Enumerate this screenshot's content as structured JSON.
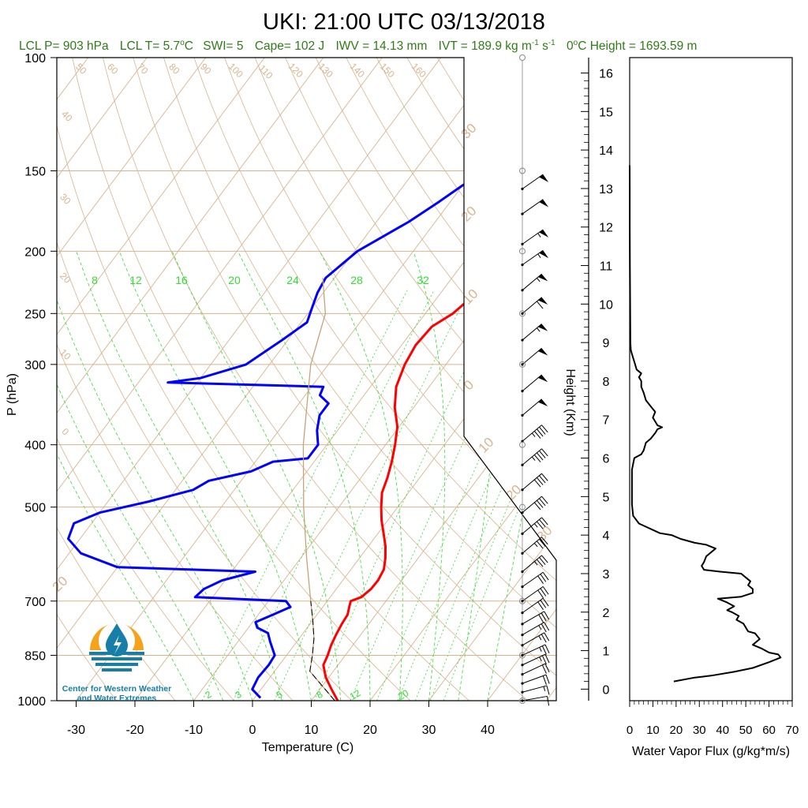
{
  "title": "UKI: 21:00 UTC 03/13/2018",
  "stats": {
    "lcl_p": "LCL P= 903 hPa",
    "lcl_t_pre": "LCL T= 5.7",
    "lcl_t_unit": "C",
    "swi": "SWI= 5",
    "cape": "Cape= 102 J",
    "iwv": "IWV = 14.13 mm",
    "ivt_pre": "IVT = 189.9 kg m",
    "ivt_e1": "-1",
    "ivt_mid": " s",
    "ivt_e2": "-1",
    "zero_pre": "0",
    "zero_post": "C Height = 1693.59 m",
    "degree": "o"
  },
  "colors": {
    "temperature": "#ff0000",
    "dewpoint": "#0000ff",
    "mixing_ratio": "#33dd33",
    "isotherm": "#d9b38c",
    "dry_adiabat": "#d9b38c",
    "title_green": "#2e7d16",
    "flux": "#000000"
  },
  "logo": {
    "line1": "Center for Western Weather",
    "line2": "and Water Extremes"
  },
  "chart_data": [
    {
      "type": "line",
      "name": "skew-t",
      "xlabel": "Temperature (C)",
      "ylabel": "P (hPa)",
      "xlim": [
        -34,
        52
      ],
      "ylim": [
        1000,
        100
      ],
      "x_ticks": [
        "-30",
        "-20",
        "-10",
        "0",
        "10",
        "20",
        "30",
        "40"
      ],
      "y_ticks": [
        100,
        150,
        200,
        250,
        300,
        400,
        500,
        700,
        850,
        1000
      ],
      "isotherm_labels": [
        "50",
        "60",
        "70",
        "80",
        "90",
        "100",
        "110",
        "120",
        "130",
        "140",
        "150",
        "160",
        "40",
        "30",
        "20",
        "10",
        "0",
        "10",
        "20",
        "30",
        "-20",
        "-10",
        "0",
        "10",
        "20",
        "30",
        "40",
        "50",
        "60"
      ],
      "mixing_ratio_labels_top": [
        "8",
        "12",
        "16",
        "20",
        "24",
        "28",
        "32"
      ],
      "mixing_ratio_labels_bottom": [
        "2",
        "3",
        "5",
        "8",
        "12",
        "20"
      ],
      "series": [
        {
          "name": "temperature",
          "points": [
            [
              14.5,
              1000
            ],
            [
              12.0,
              960
            ],
            [
              9.5,
              920
            ],
            [
              7.5,
              880
            ],
            [
              7.0,
              850
            ],
            [
              6.3,
              820
            ],
            [
              5.8,
              790
            ],
            [
              5.4,
              760
            ],
            [
              5.2,
              735
            ],
            [
              4.5,
              715
            ],
            [
              4.0,
              700
            ],
            [
              5.3,
              690
            ],
            [
              5.9,
              670
            ],
            [
              6.0,
              650
            ],
            [
              5.6,
              625
            ],
            [
              4.4,
              600
            ],
            [
              2.9,
              575
            ],
            [
              1.0,
              550
            ],
            [
              -1.0,
              525
            ],
            [
              -2.8,
              500
            ],
            [
              -4.5,
              475
            ],
            [
              -5.5,
              450
            ],
            [
              -6.8,
              425
            ],
            [
              -8.4,
              400
            ],
            [
              -10.3,
              375
            ],
            [
              -13.2,
              350
            ],
            [
              -15.6,
              325
            ],
            [
              -17.0,
              300
            ],
            [
              -17.6,
              280
            ],
            [
              -17.2,
              262
            ],
            [
              -15.3,
              250
            ],
            [
              -14.2,
              236
            ],
            [
              -14.8,
              222
            ],
            [
              -14.3,
              208
            ],
            [
              -11.5,
              197
            ],
            [
              -8.5,
              185
            ],
            [
              -6.0,
              175
            ],
            [
              -4.8,
              168
            ],
            [
              -4.0,
              160
            ],
            [
              -1.5,
              154
            ],
            [
              1.5,
              150
            ]
          ]
        },
        {
          "name": "dewpoint",
          "points": [
            [
              1.0,
              990
            ],
            [
              -1.5,
              960
            ],
            [
              -2.0,
              920
            ],
            [
              -1.8,
              880
            ],
            [
              -2.0,
              850
            ],
            [
              -4.5,
              810
            ],
            [
              -6.0,
              785
            ],
            [
              -8.5,
              770
            ],
            [
              -9.5,
              755
            ],
            [
              -7.5,
              735
            ],
            [
              -5.5,
              715
            ],
            [
              -7.0,
              700
            ],
            [
              -23.0,
              690
            ],
            [
              -22.5,
              670
            ],
            [
              -20.5,
              650
            ],
            [
              -16.0,
              630
            ],
            [
              -40.0,
              620
            ],
            [
              -48.0,
              590
            ],
            [
              -52.0,
              560
            ],
            [
              -53.0,
              530
            ],
            [
              -50.0,
              510
            ],
            [
              -43.0,
              490
            ],
            [
              -37.0,
              470
            ],
            [
              -35.5,
              455
            ],
            [
              -29.5,
              440
            ],
            [
              -27.0,
              425
            ],
            [
              -21.5,
              420
            ],
            [
              -21.5,
              400
            ],
            [
              -23.5,
              380
            ],
            [
              -25.0,
              360
            ],
            [
              -25.0,
              345
            ],
            [
              -27.5,
              335
            ],
            [
              -28.0,
              325
            ],
            [
              -55.0,
              320
            ],
            [
              -50.0,
              315
            ],
            [
              -44.0,
              300
            ],
            [
              -41.0,
              275
            ],
            [
              -39.0,
              258
            ],
            [
              -40.0,
              245
            ],
            [
              -41.0,
              232
            ],
            [
              -41.5,
              220
            ],
            [
              -39.5,
              200
            ],
            [
              -34.5,
              180
            ],
            [
              -32.0,
              168
            ],
            [
              -30.0,
              158
            ],
            [
              -27.5,
              150
            ]
          ]
        },
        {
          "name": "parcel",
          "points": [
            [
              14.0,
              1000
            ],
            [
              6.0,
              900
            ],
            [
              4.4,
              850
            ],
            [
              2.5,
              800
            ],
            [
              0.0,
              750
            ],
            [
              -2.8,
              700
            ],
            [
              -9.0,
              600
            ],
            [
              -16.0,
              500
            ],
            [
              -24.0,
              400
            ],
            [
              -33.0,
              300
            ],
            [
              -37.0,
              250
            ],
            [
              -42.0,
              220
            ]
          ]
        }
      ],
      "barbs": [
        {
          "p": 1000,
          "speed": 10,
          "dir": 260
        },
        {
          "p": 970,
          "speed": 15,
          "dir": 255
        },
        {
          "p": 940,
          "speed": 20,
          "dir": 250
        },
        {
          "p": 910,
          "speed": 20,
          "dir": 245
        },
        {
          "p": 880,
          "speed": 25,
          "dir": 245
        },
        {
          "p": 850,
          "speed": 25,
          "dir": 245
        },
        {
          "p": 820,
          "speed": 25,
          "dir": 240
        },
        {
          "p": 790,
          "speed": 25,
          "dir": 240
        },
        {
          "p": 760,
          "speed": 30,
          "dir": 240
        },
        {
          "p": 730,
          "speed": 30,
          "dir": 235
        },
        {
          "p": 700,
          "speed": 30,
          "dir": 235
        },
        {
          "p": 665,
          "speed": 30,
          "dir": 235
        },
        {
          "p": 630,
          "speed": 35,
          "dir": 230
        },
        {
          "p": 590,
          "speed": 35,
          "dir": 230
        },
        {
          "p": 550,
          "speed": 35,
          "dir": 230
        },
        {
          "p": 510,
          "speed": 40,
          "dir": 230
        },
        {
          "p": 470,
          "speed": 40,
          "dir": 230
        },
        {
          "p": 430,
          "speed": 45,
          "dir": 230
        },
        {
          "p": 395,
          "speed": 45,
          "dir": 230
        },
        {
          "p": 360,
          "speed": 50,
          "dir": 230
        },
        {
          "p": 330,
          "speed": 50,
          "dir": 230
        },
        {
          "p": 300,
          "speed": 50,
          "dir": 230
        },
        {
          "p": 275,
          "speed": 55,
          "dir": 230
        },
        {
          "p": 250,
          "speed": 60,
          "dir": 230
        },
        {
          "p": 230,
          "speed": 55,
          "dir": 230
        },
        {
          "p": 210,
          "speed": 55,
          "dir": 235
        },
        {
          "p": 195,
          "speed": 55,
          "dir": 235
        },
        {
          "p": 175,
          "speed": 50,
          "dir": 235
        },
        {
          "p": 160,
          "speed": 50,
          "dir": 235
        }
      ]
    },
    {
      "type": "line",
      "name": "water-vapor-flux",
      "xlabel": "Water Vapor Flux (g/kg*m/s)",
      "ylabel": "Height (Km)",
      "xlim": [
        0,
        70
      ],
      "ylim": [
        -0.3,
        16.4
      ],
      "x_ticks": [
        "0",
        "10",
        "20",
        "30",
        "40",
        "50",
        "60",
        "70"
      ],
      "y_ticks": [
        "0",
        "1",
        "2",
        "3",
        "4",
        "5",
        "6",
        "7",
        "8",
        "9",
        "10",
        "11",
        "12",
        "13",
        "14",
        "15",
        "16"
      ],
      "points": [
        [
          19,
          0.2
        ],
        [
          28,
          0.3
        ],
        [
          35,
          0.35
        ],
        [
          45,
          0.45
        ],
        [
          53,
          0.55
        ],
        [
          60,
          0.7
        ],
        [
          65,
          0.82
        ],
        [
          64,
          0.9
        ],
        [
          60,
          0.95
        ],
        [
          57,
          1.05
        ],
        [
          53,
          1.15
        ],
        [
          56,
          1.3
        ],
        [
          54,
          1.45
        ],
        [
          51,
          1.5
        ],
        [
          49,
          1.7
        ],
        [
          46,
          1.8
        ],
        [
          47,
          1.9
        ],
        [
          44,
          2.0
        ],
        [
          42,
          2.05
        ],
        [
          45,
          2.15
        ],
        [
          42,
          2.25
        ],
        [
          38,
          2.35
        ],
        [
          48,
          2.4
        ],
        [
          53,
          2.5
        ],
        [
          53,
          2.6
        ],
        [
          51,
          2.7
        ],
        [
          52,
          2.8
        ],
        [
          50,
          2.9
        ],
        [
          48,
          3.0
        ],
        [
          39,
          3.05
        ],
        [
          32,
          3.1
        ],
        [
          31,
          3.2
        ],
        [
          32,
          3.3
        ],
        [
          33,
          3.45
        ],
        [
          37,
          3.65
        ],
        [
          33,
          3.75
        ],
        [
          28,
          3.8
        ],
        [
          22,
          3.9
        ],
        [
          18,
          4.0
        ],
        [
          13,
          4.05
        ],
        [
          4,
          4.3
        ],
        [
          1.5,
          4.5
        ],
        [
          1,
          4.8
        ],
        [
          1,
          5.2
        ],
        [
          1,
          5.7
        ],
        [
          2,
          6.0
        ],
        [
          5,
          6.1
        ],
        [
          6,
          6.2
        ],
        [
          7,
          6.4
        ],
        [
          9,
          6.5
        ],
        [
          11,
          6.65
        ],
        [
          12,
          6.75
        ],
        [
          14,
          6.8
        ],
        [
          12,
          6.85
        ],
        [
          11,
          6.95
        ],
        [
          10,
          7.05
        ],
        [
          11,
          7.2
        ],
        [
          9,
          7.35
        ],
        [
          7,
          7.5
        ],
        [
          6,
          7.7
        ],
        [
          5,
          7.85
        ],
        [
          5,
          8.0
        ],
        [
          4,
          8.1
        ],
        [
          5,
          8.2
        ],
        [
          3,
          8.3
        ],
        [
          2,
          8.5
        ],
        [
          1,
          8.7
        ],
        [
          0.5,
          8.8
        ],
        [
          0.3,
          9.0
        ],
        [
          0.2,
          10.0
        ],
        [
          0.1,
          11.0
        ],
        [
          0.05,
          12.0
        ],
        [
          0.05,
          13.0
        ],
        [
          0.0,
          13.6
        ]
      ]
    }
  ]
}
